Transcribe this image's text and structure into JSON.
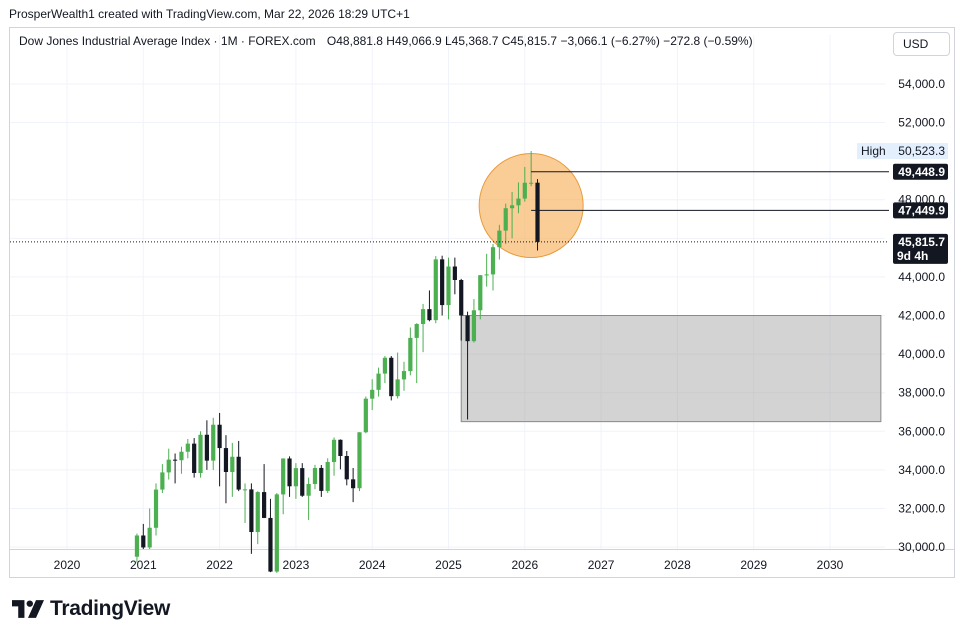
{
  "header": {
    "credit": "ProsperWealth1 created with TradingView.com, Mar 22, 2026 18:29 UTC+1"
  },
  "legend": {
    "symbol": "Dow Jones Industrial Average Index · 1M · FOREX.com",
    "ohlc": "O48,881.8 H49,066.9 L45,368.7 C45,815.7 −3,066.1 (−6.27%) −272.8 (−0.59%)"
  },
  "currency_button": "USD",
  "brand": {
    "name": "TradingView"
  },
  "colors": {
    "up": "#4caf50",
    "down": "#131722",
    "highlight": "#f7a440",
    "zone": "#9e9e9e"
  },
  "chart_data": {
    "type": "candlestick",
    "timeframe": "1M",
    "x_ticks": [
      "2020",
      "2021",
      "2022",
      "2023",
      "2024",
      "2025",
      "2026",
      "2027",
      "2028",
      "2029",
      "2030"
    ],
    "y_ticks": [
      "30,000.0",
      "32,000.0",
      "34,000.0",
      "36,000.0",
      "38,000.0",
      "40,000.0",
      "42,000.0",
      "44,000.0",
      "46,000.0",
      "48,000.0",
      "52,000.0",
      "54,000.0"
    ],
    "y_range": [
      29900,
      55500
    ],
    "price_labels": {
      "high_label": "High",
      "high_value": "50,523.3",
      "level_1": "49,448.9",
      "level_2": "47,449.9",
      "last": "45,815.7",
      "countdown": "9d 4h"
    },
    "zone": {
      "from": "2025-03",
      "to": "2030-09",
      "top": 42000,
      "bottom": 36500
    },
    "candles": [
      {
        "t": "2020-12",
        "o": 29500,
        "h": 30700,
        "l": 29200,
        "c": 30600
      },
      {
        "t": "2021-01",
        "o": 30600,
        "h": 31200,
        "l": 29900,
        "c": 29980
      },
      {
        "t": "2021-02",
        "o": 29980,
        "h": 32000,
        "l": 29900,
        "c": 31000
      },
      {
        "t": "2021-03",
        "o": 31000,
        "h": 33300,
        "l": 30600,
        "c": 32980
      },
      {
        "t": "2021-04",
        "o": 32980,
        "h": 34300,
        "l": 32800,
        "c": 33870
      },
      {
        "t": "2021-05",
        "o": 33870,
        "h": 35100,
        "l": 33500,
        "c": 34530
      },
      {
        "t": "2021-06",
        "o": 34530,
        "h": 34850,
        "l": 33300,
        "c": 34500
      },
      {
        "t": "2021-07",
        "o": 34500,
        "h": 35200,
        "l": 33800,
        "c": 34940
      },
      {
        "t": "2021-08",
        "o": 34940,
        "h": 35600,
        "l": 34600,
        "c": 35360
      },
      {
        "t": "2021-09",
        "o": 35360,
        "h": 35650,
        "l": 33600,
        "c": 33840
      },
      {
        "t": "2021-10",
        "o": 33840,
        "h": 36000,
        "l": 33600,
        "c": 35820
      },
      {
        "t": "2021-11",
        "o": 35820,
        "h": 36570,
        "l": 34000,
        "c": 34480
      },
      {
        "t": "2021-12",
        "o": 34480,
        "h": 36700,
        "l": 34000,
        "c": 36340
      },
      {
        "t": "2022-01",
        "o": 36340,
        "h": 36950,
        "l": 33150,
        "c": 35130
      },
      {
        "t": "2022-02",
        "o": 35130,
        "h": 35800,
        "l": 32270,
        "c": 33890
      },
      {
        "t": "2022-03",
        "o": 33890,
        "h": 35400,
        "l": 32600,
        "c": 34680
      },
      {
        "t": "2022-04",
        "o": 34680,
        "h": 35500,
        "l": 32900,
        "c": 32980
      },
      {
        "t": "2022-05",
        "o": 32980,
        "h": 33300,
        "l": 31250,
        "c": 32990
      },
      {
        "t": "2022-06",
        "o": 32990,
        "h": 33300,
        "l": 29650,
        "c": 30780
      },
      {
        "t": "2022-07",
        "o": 30780,
        "h": 32900,
        "l": 30150,
        "c": 32850
      },
      {
        "t": "2022-08",
        "o": 32850,
        "h": 34300,
        "l": 31500,
        "c": 31510
      },
      {
        "t": "2022-09",
        "o": 31510,
        "h": 32500,
        "l": 28700,
        "c": 28730
      },
      {
        "t": "2022-10",
        "o": 28730,
        "h": 32800,
        "l": 28660,
        "c": 32730
      },
      {
        "t": "2022-11",
        "o": 32730,
        "h": 34600,
        "l": 31700,
        "c": 34590
      },
      {
        "t": "2022-12",
        "o": 34590,
        "h": 34700,
        "l": 32600,
        "c": 33150
      },
      {
        "t": "2023-01",
        "o": 33150,
        "h": 34350,
        "l": 32500,
        "c": 34090
      },
      {
        "t": "2023-02",
        "o": 34090,
        "h": 34350,
        "l": 32600,
        "c": 32660
      },
      {
        "t": "2023-03",
        "o": 32660,
        "h": 33600,
        "l": 31400,
        "c": 33270
      },
      {
        "t": "2023-04",
        "o": 33270,
        "h": 34260,
        "l": 33000,
        "c": 34100
      },
      {
        "t": "2023-05",
        "o": 34100,
        "h": 34250,
        "l": 32600,
        "c": 32910
      },
      {
        "t": "2023-06",
        "o": 32910,
        "h": 34600,
        "l": 32800,
        "c": 34410
      },
      {
        "t": "2023-07",
        "o": 34410,
        "h": 35680,
        "l": 33700,
        "c": 35560
      },
      {
        "t": "2023-08",
        "o": 35560,
        "h": 35580,
        "l": 34030,
        "c": 34720
      },
      {
        "t": "2023-09",
        "o": 34720,
        "h": 34980,
        "l": 33200,
        "c": 33510
      },
      {
        "t": "2023-10",
        "o": 33510,
        "h": 34100,
        "l": 32330,
        "c": 33050
      },
      {
        "t": "2023-11",
        "o": 33050,
        "h": 35950,
        "l": 32900,
        "c": 35950
      },
      {
        "t": "2023-12",
        "o": 35950,
        "h": 37800,
        "l": 35900,
        "c": 37690
      },
      {
        "t": "2024-01",
        "o": 37690,
        "h": 38700,
        "l": 37100,
        "c": 38150
      },
      {
        "t": "2024-02",
        "o": 38150,
        "h": 39300,
        "l": 37800,
        "c": 38990
      },
      {
        "t": "2024-03",
        "o": 38990,
        "h": 39900,
        "l": 38500,
        "c": 39810
      },
      {
        "t": "2024-04",
        "o": 39810,
        "h": 39900,
        "l": 37600,
        "c": 37820
      },
      {
        "t": "2024-05",
        "o": 37820,
        "h": 40080,
        "l": 37700,
        "c": 38690
      },
      {
        "t": "2024-06",
        "o": 38690,
        "h": 39600,
        "l": 38100,
        "c": 39120
      },
      {
        "t": "2024-07",
        "o": 39120,
        "h": 41380,
        "l": 38900,
        "c": 40840
      },
      {
        "t": "2024-08",
        "o": 40840,
        "h": 41600,
        "l": 38500,
        "c": 41560
      },
      {
        "t": "2024-09",
        "o": 41560,
        "h": 42600,
        "l": 40100,
        "c": 42330
      },
      {
        "t": "2024-10",
        "o": 42330,
        "h": 43300,
        "l": 41700,
        "c": 41760
      },
      {
        "t": "2024-11",
        "o": 41760,
        "h": 45080,
        "l": 41600,
        "c": 44910
      },
      {
        "t": "2024-12",
        "o": 44910,
        "h": 45100,
        "l": 42000,
        "c": 42540
      },
      {
        "t": "2025-01",
        "o": 42540,
        "h": 45000,
        "l": 41800,
        "c": 44540
      },
      {
        "t": "2025-02",
        "o": 44540,
        "h": 45000,
        "l": 43100,
        "c": 43840
      },
      {
        "t": "2025-03",
        "o": 43840,
        "h": 43900,
        "l": 40700,
        "c": 42000
      },
      {
        "t": "2025-04",
        "o": 42000,
        "h": 42200,
        "l": 36610,
        "c": 40670
      },
      {
        "t": "2025-05",
        "o": 40670,
        "h": 42850,
        "l": 40600,
        "c": 42270
      },
      {
        "t": "2025-06",
        "o": 42270,
        "h": 44100,
        "l": 41800,
        "c": 44090
      },
      {
        "t": "2025-07",
        "o": 44090,
        "h": 45200,
        "l": 43500,
        "c": 44130
      },
      {
        "t": "2025-08",
        "o": 44130,
        "h": 45700,
        "l": 43300,
        "c": 45540
      },
      {
        "t": "2025-09",
        "o": 45540,
        "h": 46700,
        "l": 44900,
        "c": 46400
      },
      {
        "t": "2025-10",
        "o": 46400,
        "h": 47800,
        "l": 45700,
        "c": 47560
      },
      {
        "t": "2025-11",
        "o": 47560,
        "h": 48400,
        "l": 46000,
        "c": 47710
      },
      {
        "t": "2025-12",
        "o": 47710,
        "h": 48900,
        "l": 47300,
        "c": 48060
      },
      {
        "t": "2026-01",
        "o": 48060,
        "h": 49700,
        "l": 47900,
        "c": 48880
      },
      {
        "t": "2026-02",
        "o": 48880,
        "h": 50523,
        "l": 48700,
        "c": 48880
      },
      {
        "t": "2026-03",
        "o": 48881.8,
        "h": 49066.9,
        "l": 45368.7,
        "c": 45815.7
      }
    ]
  }
}
